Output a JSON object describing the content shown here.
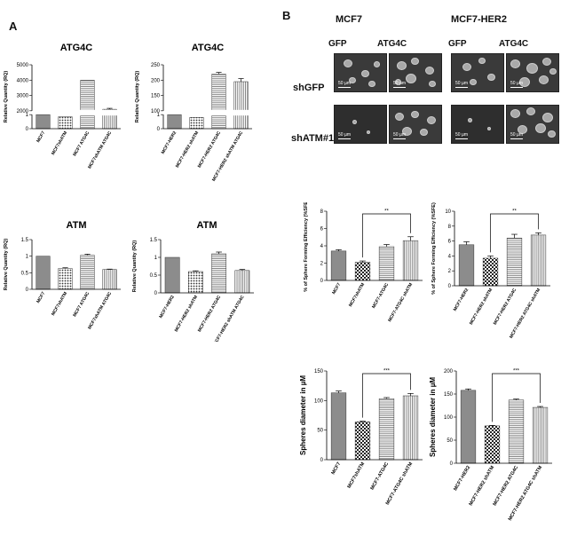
{
  "panels": {
    "a": "A",
    "b": "B"
  },
  "micro": {
    "groups": [
      "MCF7",
      "MCF7-HER2"
    ],
    "columns": [
      "GFP",
      "ATG4C",
      "GFP",
      "ATG4C"
    ],
    "rows": [
      "shGFP",
      "shATM#1"
    ],
    "scale_label": "50 µm"
  },
  "chart_data": [
    {
      "id": "atg4c_mcf7",
      "type": "bar",
      "title": "ATG4C",
      "ylabel": "Relative Quantity (RQ)",
      "categories": [
        "MCF7",
        "MCF7shATM",
        "MCF7 ATG4C",
        "MCF7shATM ATG4C"
      ],
      "values": [
        1,
        0.85,
        4000,
        2100
      ],
      "errors": [
        0,
        0,
        0,
        60
      ],
      "broken_axis": true,
      "lower_ticks": [
        0,
        1
      ],
      "upper_ticks": [
        2000,
        3000,
        4000,
        5000
      ],
      "patterns": [
        "gray",
        "dots",
        "hlines",
        "vlines"
      ]
    },
    {
      "id": "atg4c_her2",
      "type": "bar",
      "title": "ATG4C",
      "ylabel": "Relative Quantity (RQ)",
      "categories": [
        "MCF7-HER2",
        "MCF7-HER2 shATM",
        "MCF7-HER2 ATG4C",
        "MCF7-HER2 shATM ATG4C"
      ],
      "values": [
        1,
        0.8,
        220,
        195
      ],
      "errors": [
        0,
        0,
        5,
        10
      ],
      "broken_axis": true,
      "lower_ticks": [
        0,
        1
      ],
      "upper_ticks": [
        100,
        150,
        200,
        250
      ],
      "patterns": [
        "gray",
        "dots",
        "hlines",
        "vlines"
      ]
    },
    {
      "id": "atm_mcf7",
      "type": "bar",
      "title": "ATM",
      "ylabel": "Relative Quantity (RQ)",
      "categories": [
        "MCF7",
        "MCF7shATM",
        "MCF7 ATG4C",
        "MCF7shATM ATG4C"
      ],
      "values": [
        1.0,
        0.63,
        1.03,
        0.6
      ],
      "errors": [
        0,
        0.02,
        0.03,
        0.01
      ],
      "ylim": [
        0,
        1.5
      ],
      "ticks": [
        0,
        0.5,
        1,
        1.5
      ],
      "patterns": [
        "gray",
        "dots",
        "hlines",
        "vlines"
      ]
    },
    {
      "id": "atm_her2",
      "type": "bar",
      "title": "ATM",
      "ylabel": "Relative Quantity (RQ)",
      "categories": [
        "MCF7-HER2",
        "MCF7-HER2 shATM",
        "MCF7-HER2 ATG4C",
        "MCF7-HER2 shATM ATG4C"
      ],
      "values": [
        1.0,
        0.6,
        1.1,
        0.63
      ],
      "errors": [
        0,
        0.02,
        0.05,
        0.03
      ],
      "ylim": [
        0,
        1.5
      ],
      "ticks": [
        0,
        0.5,
        1.0,
        1.5
      ],
      "patterns": [
        "gray",
        "dots",
        "hlines",
        "vlines"
      ]
    },
    {
      "id": "sfe_mcf7",
      "type": "bar",
      "title": "",
      "ylabel": "% of Sphere Forming  Efficiency (%SFE)",
      "categories": [
        "MCF7",
        "MCF7shATM",
        "MCF7-ATG4C",
        "MCF7-ATG4C shATM"
      ],
      "values": [
        3.4,
        2.1,
        3.9,
        4.6
      ],
      "errors": [
        0.15,
        0.15,
        0.25,
        0.45
      ],
      "ylim": [
        0,
        8
      ],
      "ticks": [
        0,
        2,
        4,
        6,
        8
      ],
      "patterns": [
        "gray",
        "checker",
        "hlines",
        "vlines"
      ],
      "significance": {
        "from": 1,
        "to": 3,
        "label": "**"
      }
    },
    {
      "id": "sfe_her2",
      "type": "bar",
      "title": "",
      "ylabel": "% of Sphere Forming  Efficiency (%SFE)",
      "categories": [
        "MCF7-HER2",
        "MCF7-HER2 shATM",
        "MCF7-HER2 ATG4C",
        "MCF7-HER2 ATG4C shATM"
      ],
      "values": [
        5.5,
        3.7,
        6.4,
        6.8
      ],
      "errors": [
        0.4,
        0.3,
        0.5,
        0.3
      ],
      "ylim": [
        0,
        10
      ],
      "ticks": [
        0,
        2,
        4,
        6,
        8,
        10
      ],
      "patterns": [
        "gray",
        "checker",
        "hlines",
        "vlines"
      ],
      "significance": {
        "from": 1,
        "to": 3,
        "label": "**"
      }
    },
    {
      "id": "diam_mcf7",
      "type": "bar",
      "title": "",
      "ylabel": "Spheres diameter in  µM",
      "categories": [
        "MCF7",
        "MCF7shATM",
        "MCF7-ATG4C",
        "MCF7-ATG4C shATM"
      ],
      "values": [
        113,
        64,
        103,
        108
      ],
      "errors": [
        3,
        1,
        2,
        4
      ],
      "ylim": [
        0,
        150
      ],
      "ticks": [
        0,
        50,
        100,
        150
      ],
      "patterns": [
        "gray",
        "checker",
        "hlines",
        "vlines"
      ],
      "significance": {
        "from": 1,
        "to": 3,
        "label": "***"
      }
    },
    {
      "id": "diam_her2",
      "type": "bar",
      "title": "",
      "ylabel": "Spheres diameter in  µM",
      "categories": [
        "MCF7-HER2",
        "MCF7-HER2 shATM",
        "MCF7-HER2 ATG4C",
        "MCF7-HER2 ATG4C shATM"
      ],
      "values": [
        158,
        81,
        137,
        121
      ],
      "errors": [
        3,
        1,
        2,
        2
      ],
      "ylim": [
        0,
        200
      ],
      "ticks": [
        0,
        50,
        100,
        150,
        200
      ],
      "patterns": [
        "gray",
        "checker",
        "hlines",
        "vlines"
      ],
      "significance": {
        "from": 1,
        "to": 3,
        "label": "***"
      }
    }
  ]
}
